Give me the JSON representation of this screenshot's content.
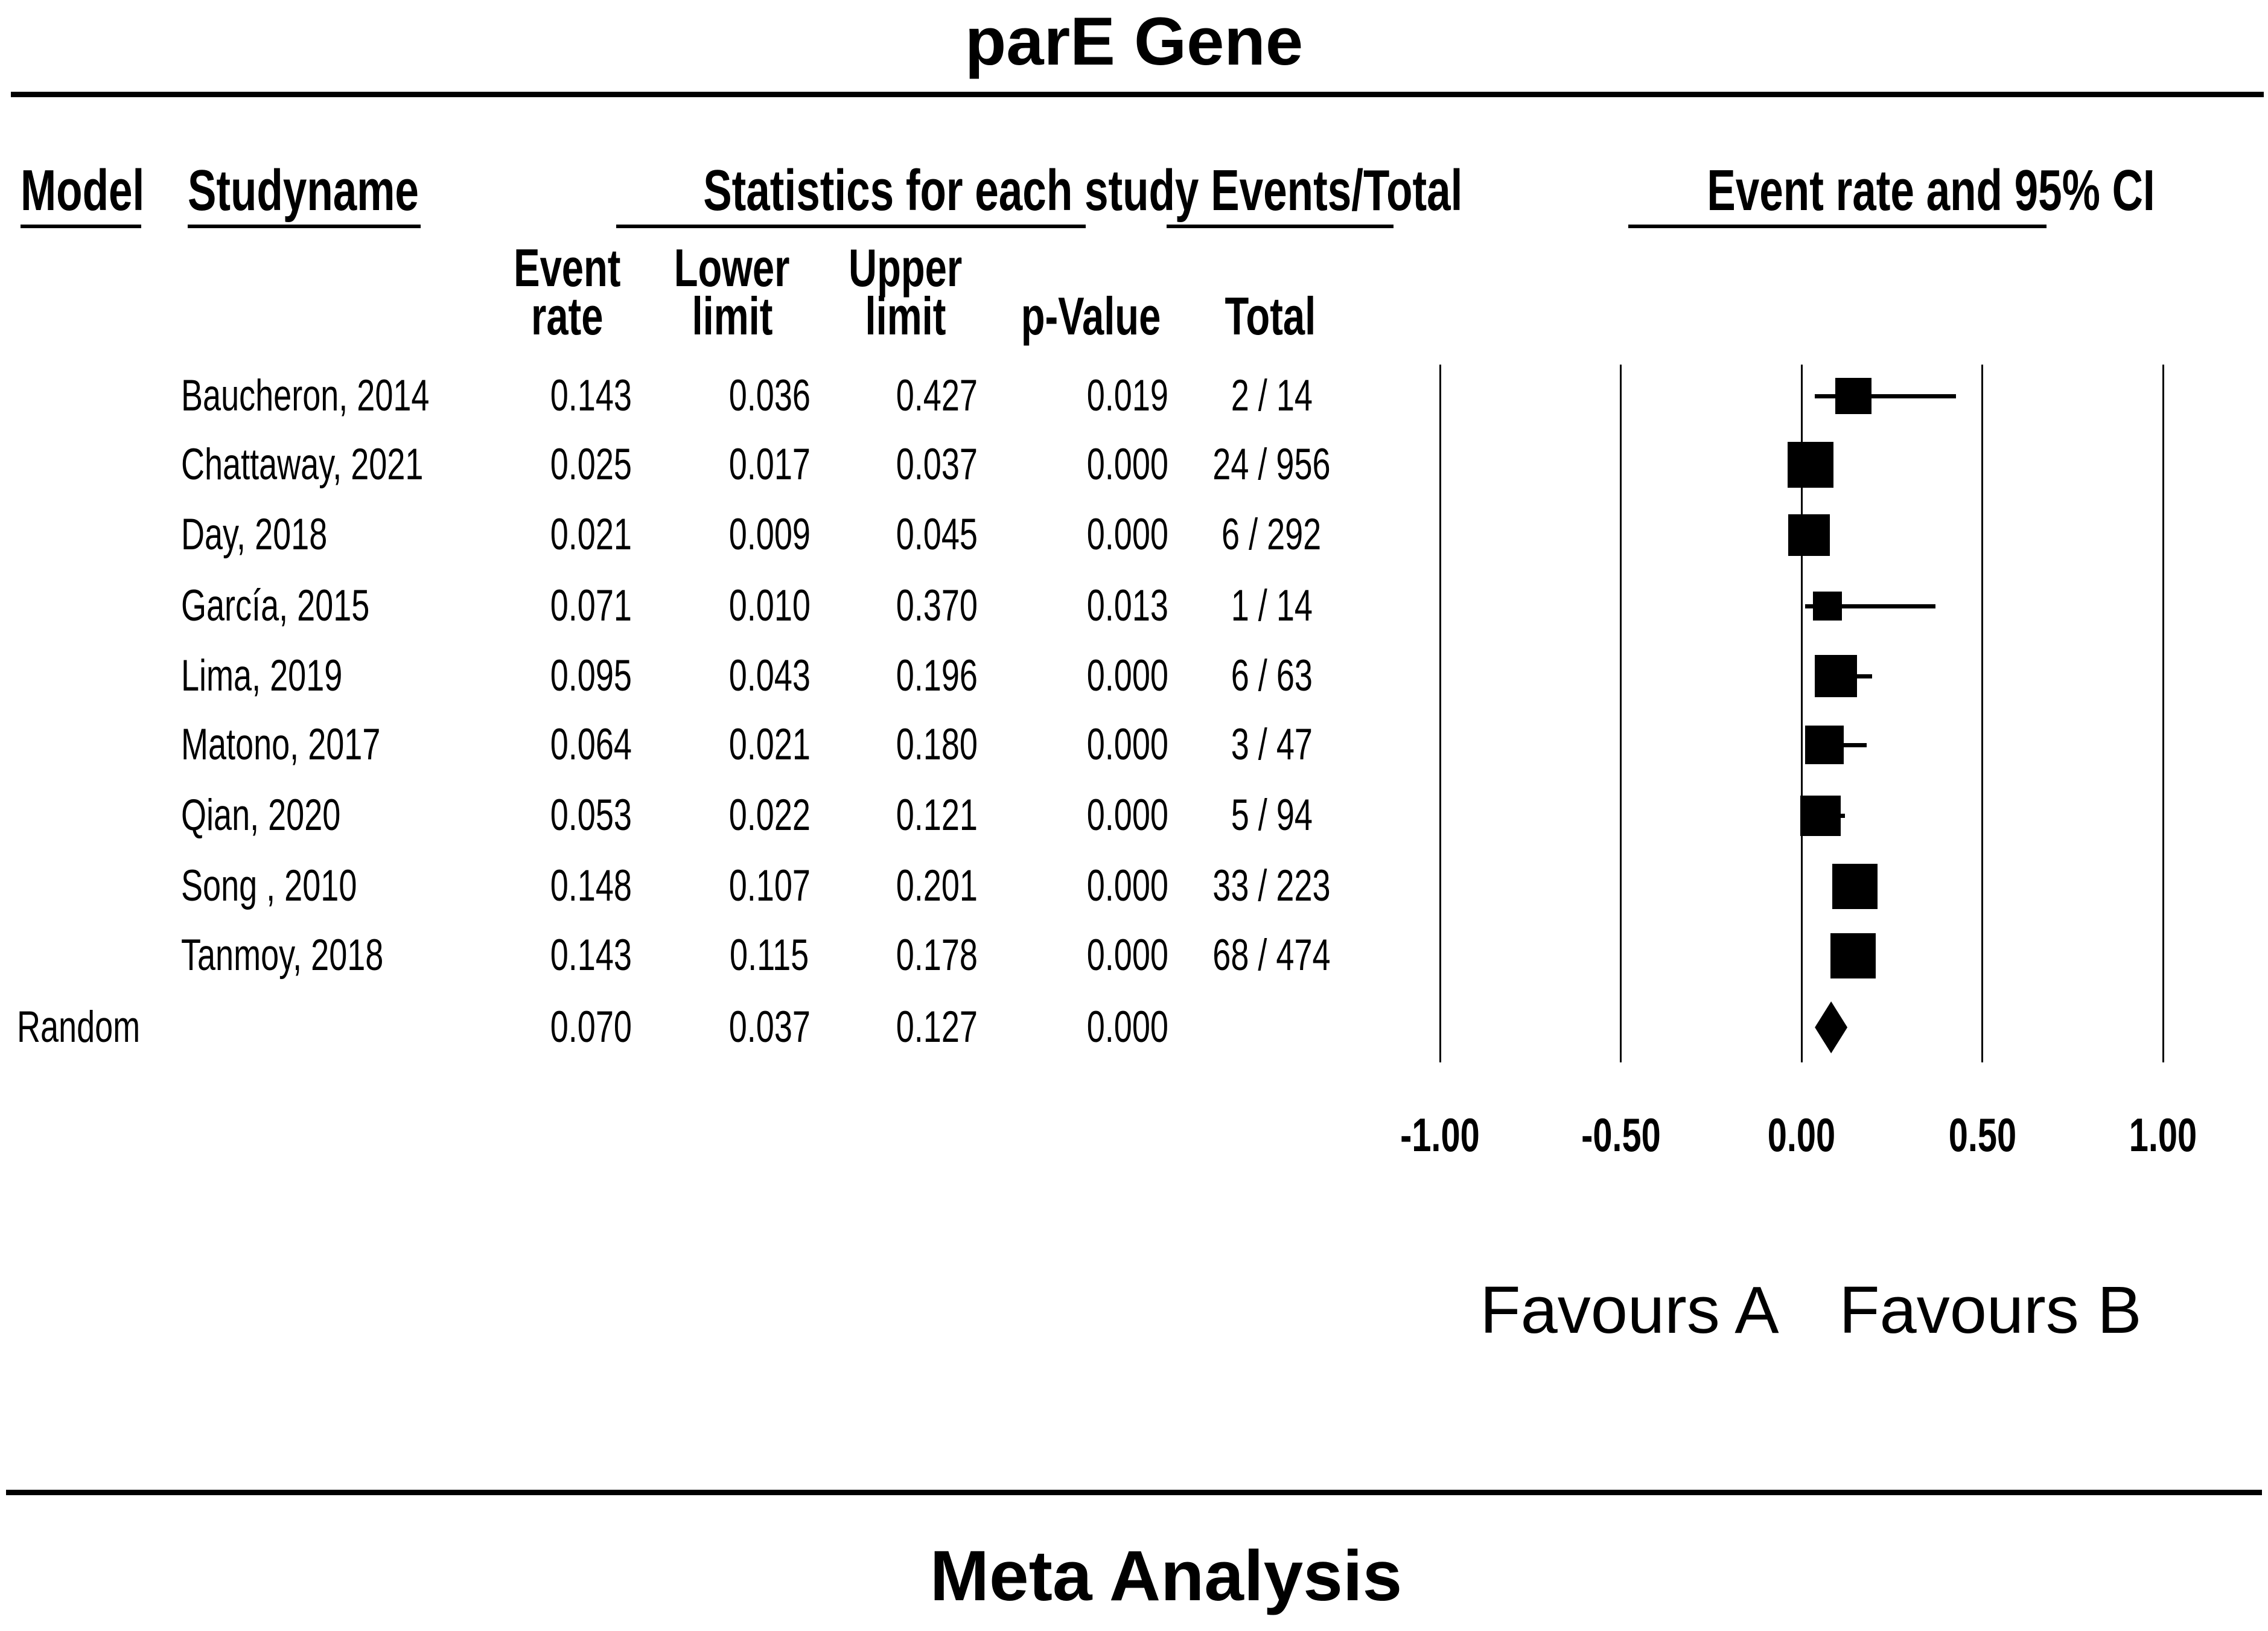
{
  "headers": {
    "model": "Model",
    "study_name": "Studyname",
    "statistics": "Statistics for each study",
    "events_total": "Events/Total",
    "event_rate_ci": "Event rate and 95% CI"
  },
  "subheaders": {
    "event_rate": [
      "Event",
      "rate"
    ],
    "lower_limit": [
      "Lower",
      "limit"
    ],
    "upper_limit": [
      "Upper",
      "limit"
    ],
    "p_value": "p-Value",
    "total": "Total"
  },
  "chart_data": {
    "type": "scatter",
    "subtype": "forest-plot",
    "title": "parE Gene",
    "footer": "Meta Analysis",
    "x_axis": {
      "label": "Event rate and 95% CI",
      "range": [
        -1.0,
        1.0
      ],
      "ticks": [
        -1.0,
        -0.5,
        0.0,
        0.5,
        1.0
      ],
      "tick_labels": [
        "-1.00",
        "-0.50",
        "0.00",
        "0.50",
        "1.00"
      ],
      "grid": "vertical-lines"
    },
    "direction_labels": {
      "left": "Favours A",
      "right": "Favours B"
    },
    "model_label": "Random",
    "studies": [
      {
        "name": "Baucheron, 2014",
        "event_rate": 0.143,
        "lower_limit": 0.036,
        "upper_limit": 0.427,
        "p_value": "0.019",
        "events_total": "2 / 14",
        "rate_str": "0.143",
        "lower_str": "0.036",
        "upper_str": "0.427",
        "marker_size_px": 60
      },
      {
        "name": "Chattaway, 2021",
        "event_rate": 0.025,
        "lower_limit": 0.017,
        "upper_limit": 0.037,
        "p_value": "0.000",
        "events_total": "24 / 956",
        "rate_str": "0.025",
        "lower_str": "0.017",
        "upper_str": "0.037",
        "marker_size_px": 76
      },
      {
        "name": "Day, 2018",
        "event_rate": 0.021,
        "lower_limit": 0.009,
        "upper_limit": 0.045,
        "p_value": "0.000",
        "events_total": "6 / 292",
        "rate_str": "0.021",
        "lower_str": "0.009",
        "upper_str": "0.045",
        "marker_size_px": 69
      },
      {
        "name": "García, 2015",
        "event_rate": 0.071,
        "lower_limit": 0.01,
        "upper_limit": 0.37,
        "p_value": "0.013",
        "events_total": "1 / 14",
        "rate_str": "0.071",
        "lower_str": "0.010",
        "upper_str": "0.370",
        "marker_size_px": 48
      },
      {
        "name": "Lima, 2019",
        "event_rate": 0.095,
        "lower_limit": 0.043,
        "upper_limit": 0.196,
        "p_value": "0.000",
        "events_total": "6 / 63",
        "rate_str": "0.095",
        "lower_str": "0.043",
        "upper_str": "0.196",
        "marker_size_px": 70
      },
      {
        "name": "Matono, 2017",
        "event_rate": 0.064,
        "lower_limit": 0.021,
        "upper_limit": 0.18,
        "p_value": "0.000",
        "events_total": "3 / 47",
        "rate_str": "0.064",
        "lower_str": "0.021",
        "upper_str": "0.180",
        "marker_size_px": 64
      },
      {
        "name": "Qian, 2020",
        "event_rate": 0.053,
        "lower_limit": 0.022,
        "upper_limit": 0.121,
        "p_value": "0.000",
        "events_total": "5 / 94",
        "rate_str": "0.053",
        "lower_str": "0.022",
        "upper_str": "0.121",
        "marker_size_px": 67
      },
      {
        "name": "Song , 2010",
        "event_rate": 0.148,
        "lower_limit": 0.107,
        "upper_limit": 0.201,
        "p_value": "0.000",
        "events_total": "33 / 223",
        "rate_str": "0.148",
        "lower_str": "0.107",
        "upper_str": "0.201",
        "marker_size_px": 75
      },
      {
        "name": "Tanmoy, 2018",
        "event_rate": 0.143,
        "lower_limit": 0.115,
        "upper_limit": 0.178,
        "p_value": "0.000",
        "events_total": "68 / 474",
        "rate_str": "0.143",
        "lower_str": "0.115",
        "upper_str": "0.178",
        "marker_size_px": 75
      }
    ],
    "summary": {
      "name": "Random",
      "event_rate": 0.07,
      "lower_limit": 0.037,
      "upper_limit": 0.127,
      "p_value": "0.000",
      "rate_str": "0.070",
      "lower_str": "0.037",
      "upper_str": "0.127"
    }
  }
}
